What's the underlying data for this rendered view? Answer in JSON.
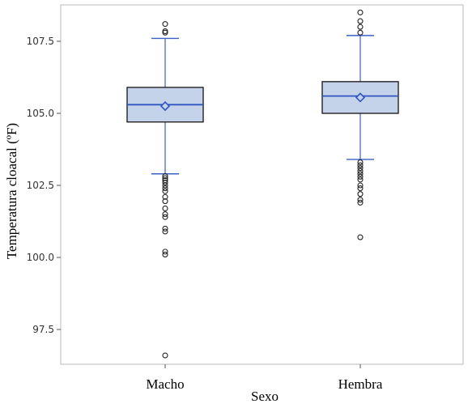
{
  "chart_data": {
    "type": "boxplot",
    "xlabel": "Sexo",
    "ylabel": "Temperatura cloacal (ºF)",
    "ylim": [
      96.2,
      108.9
    ],
    "yticks": [
      97.5,
      100.0,
      102.5,
      105.0,
      107.5
    ],
    "ytick_labels": [
      "97.5",
      "100.0",
      "102.5",
      "105.0",
      "107.5"
    ],
    "grid": false,
    "colors": {
      "box_fill": "#c5d3ea",
      "box_edge": "#222222",
      "median": "#2e55c0",
      "whisker": "#3a5fc8",
      "mean": "#2e55c0",
      "outlier": "#222222"
    },
    "categories": [
      "Macho",
      "Hembra"
    ],
    "boxes": [
      {
        "category": "Macho",
        "q1": 104.7,
        "median": 105.3,
        "q3": 105.9,
        "mean": 105.25,
        "whisker_low": 102.9,
        "whisker_high": 107.6,
        "outliers": [
          108.1,
          107.85,
          107.8,
          102.82,
          102.75,
          102.68,
          102.6,
          102.5,
          102.4,
          102.3,
          102.1,
          101.95,
          101.7,
          101.5,
          101.4,
          101.0,
          100.9,
          100.2,
          100.1,
          96.6
        ]
      },
      {
        "category": "Hembra",
        "q1": 105.0,
        "median": 105.6,
        "q3": 106.1,
        "mean": 105.55,
        "whisker_low": 103.4,
        "whisker_high": 107.7,
        "outliers": [
          108.5,
          108.2,
          108.0,
          107.8,
          103.3,
          103.2,
          103.1,
          103.0,
          102.9,
          102.8,
          102.7,
          102.5,
          102.4,
          102.2,
          102.0,
          101.9,
          100.7
        ]
      }
    ]
  }
}
